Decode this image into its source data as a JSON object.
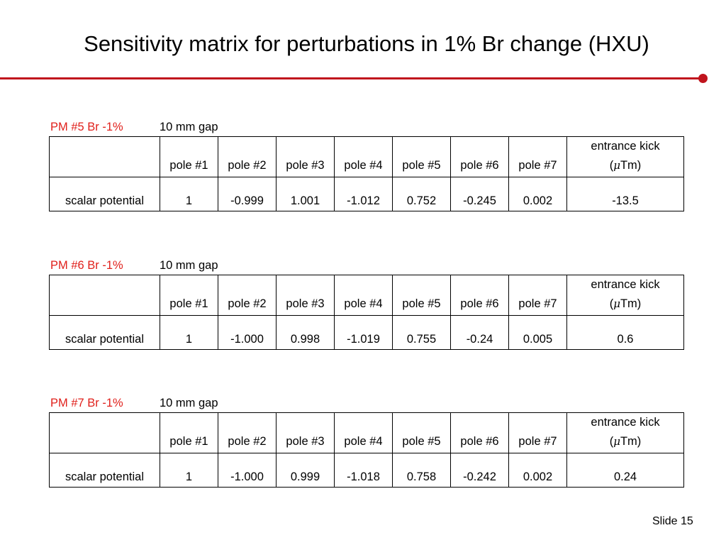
{
  "title": "Sensitivity matrix for perturbations in 1% Br change (HXU)",
  "accent_color": "#c0141d",
  "label_color": "#e0201b",
  "blocks": [
    {
      "pm_label": "PM #5 Br -1%",
      "gap_label": "10 mm gap",
      "headers": [
        "",
        "pole #1",
        "pole #2",
        "pole #3",
        "pole #4",
        "pole #5",
        "pole #6",
        "pole #7"
      ],
      "kick_header_line1": "entrance kick",
      "kick_header_line2_prefix": "(",
      "kick_header_mu": "μ",
      "kick_header_line2_suffix": "Tm)",
      "row_label": "scalar potential",
      "values": [
        "1",
        "-0.999",
        "1.001",
        "-1.012",
        "0.752",
        "-0.245",
        "0.002",
        "-13.5"
      ]
    },
    {
      "pm_label": "PM #6 Br -1%",
      "gap_label": "10 mm gap",
      "headers": [
        "",
        "pole #1",
        "pole #2",
        "pole #3",
        "pole #4",
        "pole #5",
        "pole #6",
        "pole #7"
      ],
      "kick_header_line1": "entrance kick",
      "kick_header_line2_prefix": "(",
      "kick_header_mu": "μ",
      "kick_header_line2_suffix": "Tm)",
      "row_label": "scalar potential",
      "values": [
        "1",
        "-1.000",
        "0.998",
        "-1.019",
        "0.755",
        "-0.24",
        "0.005",
        "0.6"
      ]
    },
    {
      "pm_label": "PM #7 Br -1%",
      "gap_label": "10 mm gap",
      "headers": [
        "",
        "pole #1",
        "pole #2",
        "pole #3",
        "pole #4",
        "pole #5",
        "pole #6",
        "pole #7"
      ],
      "kick_header_line1": "entrance kick",
      "kick_header_line2_prefix": "(",
      "kick_header_mu": "μ",
      "kick_header_line2_suffix": "Tm)",
      "row_label": "scalar potential",
      "values": [
        "1",
        "-1.000",
        "0.999",
        "-1.018",
        "0.758",
        "-0.242",
        "0.002",
        "0.24"
      ]
    }
  ],
  "slide_number": "Slide 15"
}
